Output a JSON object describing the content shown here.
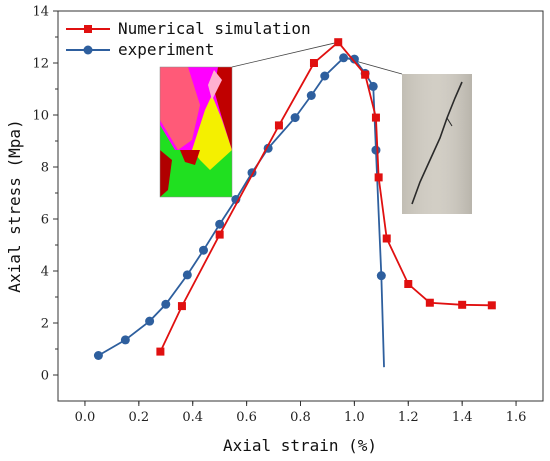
{
  "chart_data": {
    "type": "line",
    "xlabel": "Axial strain (%)",
    "ylabel": "Axial stress (Mpa)",
    "xlim": [
      -0.1,
      1.7
    ],
    "ylim": [
      -1,
      14
    ],
    "x_ticks": [
      "0.0",
      "0.2",
      "0.4",
      "0.6",
      "0.8",
      "1.0",
      "1.2",
      "1.4",
      "1.6"
    ],
    "y_ticks": [
      "0",
      "2",
      "4",
      "6",
      "8",
      "10",
      "12",
      "14"
    ],
    "legend_position": "top-left",
    "series": [
      {
        "name": "Numerical simulation",
        "color": "#e01010",
        "marker": "square",
        "points": [
          [
            0.28,
            0.9
          ],
          [
            0.36,
            2.65
          ],
          [
            0.5,
            5.4
          ],
          [
            0.72,
            9.6
          ],
          [
            0.85,
            12.0
          ],
          [
            0.94,
            12.8
          ],
          [
            1.04,
            11.55
          ],
          [
            1.08,
            9.9
          ],
          [
            1.09,
            7.6
          ],
          [
            1.12,
            5.25
          ],
          [
            1.2,
            3.5
          ],
          [
            1.28,
            2.78
          ],
          [
            1.4,
            2.7
          ],
          [
            1.51,
            2.68
          ]
        ]
      },
      {
        "name": "experiment",
        "color": "#2e5f9e",
        "marker": "circle",
        "points": [
          [
            0.05,
            0.75
          ],
          [
            0.15,
            1.35
          ],
          [
            0.24,
            2.07
          ],
          [
            0.3,
            2.72
          ],
          [
            0.38,
            3.85
          ],
          [
            0.44,
            4.8
          ],
          [
            0.5,
            5.8
          ],
          [
            0.56,
            6.75
          ],
          [
            0.62,
            7.78
          ],
          [
            0.68,
            8.72
          ],
          [
            0.78,
            9.9
          ],
          [
            0.84,
            10.75
          ],
          [
            0.89,
            11.5
          ],
          [
            0.96,
            12.2
          ],
          [
            1.0,
            12.15
          ],
          [
            1.04,
            11.6
          ],
          [
            1.07,
            11.1
          ],
          [
            1.08,
            8.65
          ],
          [
            1.1,
            3.82
          ]
        ],
        "tail": [
          [
            1.11,
            0.3
          ]
        ]
      }
    ],
    "insets": [
      {
        "name": "simulation-contour-image",
        "colors": [
          "#ff00ff",
          "#ffee00",
          "#00ee00",
          "#ff6666",
          "#b00000"
        ]
      },
      {
        "name": "experiment-specimen-photo",
        "colors": [
          "#cfcbc2",
          "#2a2a2a"
        ]
      }
    ]
  }
}
